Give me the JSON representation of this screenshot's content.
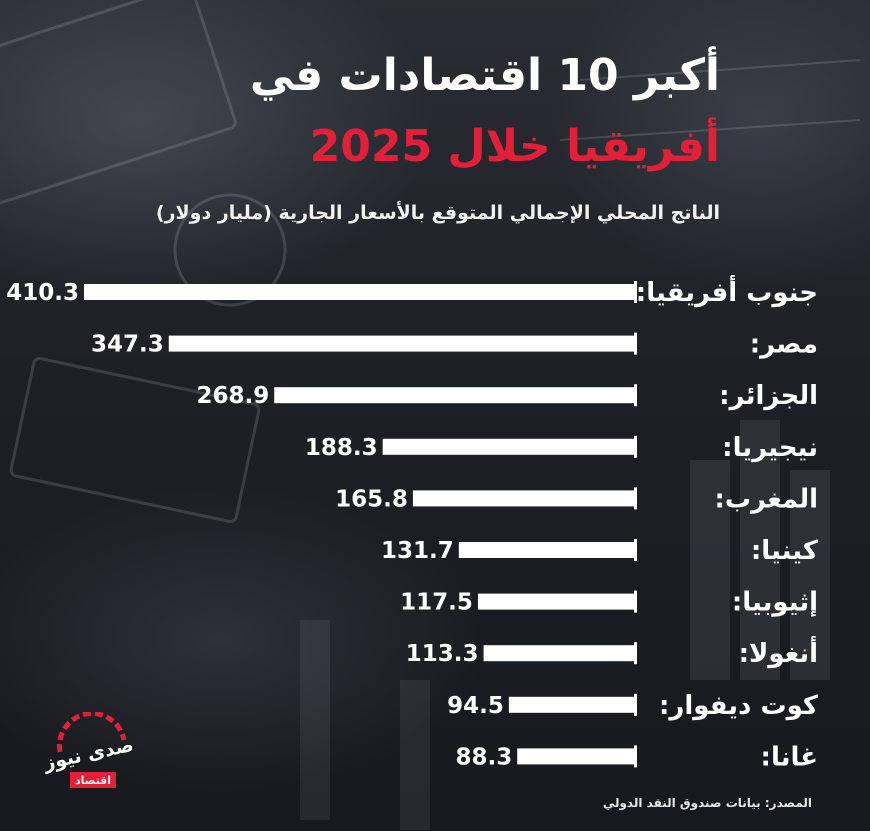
{
  "header": {
    "title_line1": "أكبر 10 اقتصادات في",
    "title_line2": "أفريقيا خلال 2025",
    "subtitle": "الناتج المحلي الإجمالي المتوقع بالأسعار الجارية (مليار دولار)"
  },
  "source": "المصدر: بيانات صندوق النقد الدولي",
  "logo": {
    "text": "صدى نيوز",
    "tag": "اقتصاد"
  },
  "colors": {
    "accent": "#e3203a",
    "bar": "#ffffff",
    "text": "#ffffff"
  },
  "chart_data": {
    "type": "bar",
    "orientation": "horizontal",
    "categories": [
      "جنوب أفريقيا:",
      "مصر:",
      "الجزائر:",
      "نيجيريا:",
      "المغرب:",
      "كينيا:",
      "إثيوبيا:",
      "أنغولا:",
      "كوت ديفوار:",
      "غانا:"
    ],
    "values": [
      410.3,
      347.3,
      268.9,
      188.3,
      165.8,
      131.7,
      117.5,
      113.3,
      94.5,
      88.3
    ],
    "value_labels": [
      "410.3",
      "347.3",
      "268.9",
      "188.3",
      "165.8",
      "131.7",
      "117.5",
      "113.3",
      "94.5",
      "88.3"
    ],
    "title": "أكبر 10 اقتصادات في أفريقيا خلال 2025",
    "subtitle": "الناتج المحلي الإجمالي المتوقع بالأسعار الجارية (مليار دولار)",
    "xlabel": "",
    "ylabel": "",
    "grid": false,
    "legend": "none"
  }
}
